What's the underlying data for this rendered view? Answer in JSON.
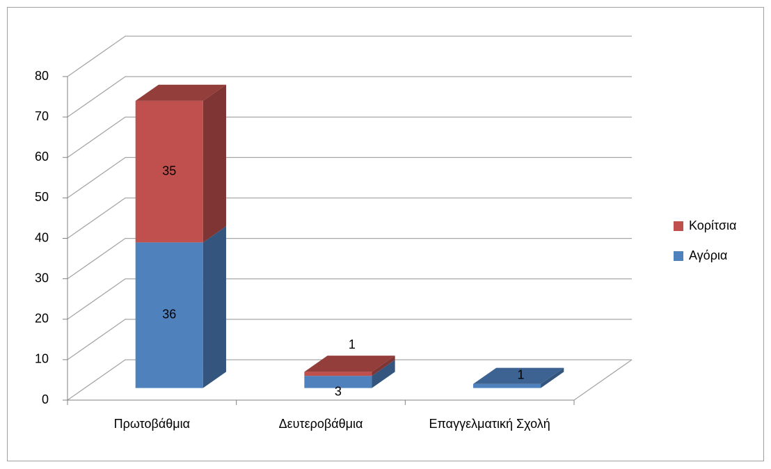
{
  "chart_data": {
    "type": "bar3d_stacked",
    "categories": [
      "Πρωτοβάθμια",
      "Δευτεροβάθμια",
      "Επαγγελματική Σχολή"
    ],
    "series": [
      {
        "name": "Αγόρια",
        "color": "#4f81bd",
        "values": [
          36,
          3,
          1
        ]
      },
      {
        "name": "Κορίτσια",
        "color": "#c0504d",
        "values": [
          35,
          1,
          null
        ]
      }
    ],
    "ylim": [
      0,
      80
    ],
    "yticks": [
      0,
      10,
      20,
      30,
      40,
      50,
      60,
      70,
      80
    ],
    "grid": true,
    "legend": "right"
  }
}
